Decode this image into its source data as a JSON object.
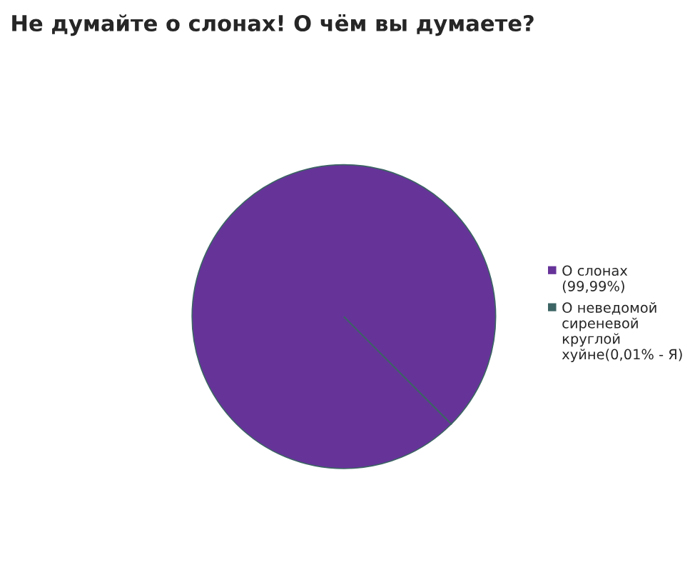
{
  "chart_data": {
    "type": "pie",
    "title": "Не думайте о слонах! О чём вы думаете?",
    "categories": [
      "О слонах (99,99%)",
      "О неведомой сиреневой круглой хуйне(0,01% - Я)"
    ],
    "values": [
      99.99,
      0.01
    ],
    "colors": [
      "#663399",
      "#3c6464"
    ],
    "legend": "right"
  }
}
